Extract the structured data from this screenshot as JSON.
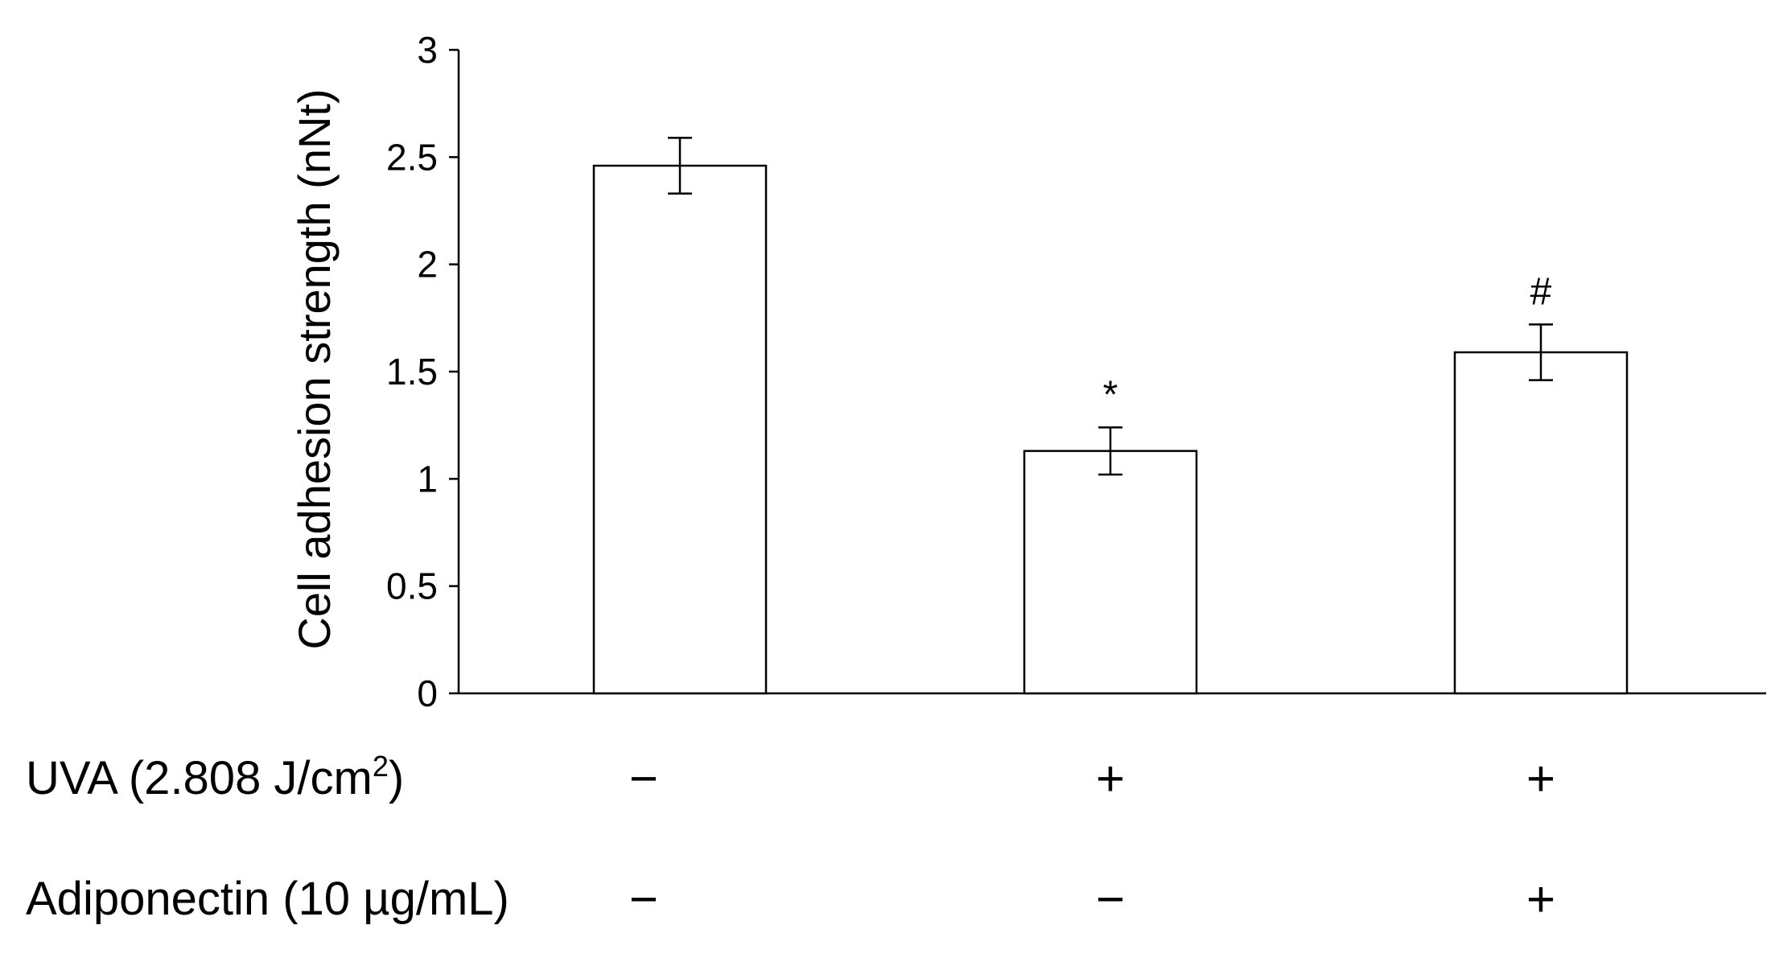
{
  "chart_data": {
    "type": "bar",
    "title": "",
    "ylabel": "Cell adhesion strength (nNt)",
    "xlabel": "",
    "ylim": [
      0,
      3
    ],
    "yticks": [
      "0",
      "0.5",
      "1",
      "1.5",
      "2",
      "2.5",
      "3"
    ],
    "categories": [
      "UVA − / Adiponectin −",
      "UVA + / Adiponectin −",
      "UVA + / Adiponectin +"
    ],
    "values": [
      2.46,
      1.13,
      1.59
    ],
    "errors": [
      0.13,
      0.11,
      0.13
    ],
    "annotations": [
      "",
      "*",
      "#"
    ],
    "bar_fill": "#ffffff",
    "bar_stroke": "#000000",
    "grid": false,
    "legend": "none",
    "treatments": [
      {
        "label": "UVA (2.808 J/cm",
        "label_sup": "2",
        "label_suffix": ")",
        "signs": [
          "−",
          "+",
          "+"
        ]
      },
      {
        "label": "Adiponectin (10 µg/mL)",
        "label_sup": "",
        "label_suffix": "",
        "signs": [
          "−",
          "−",
          "+"
        ]
      }
    ]
  }
}
